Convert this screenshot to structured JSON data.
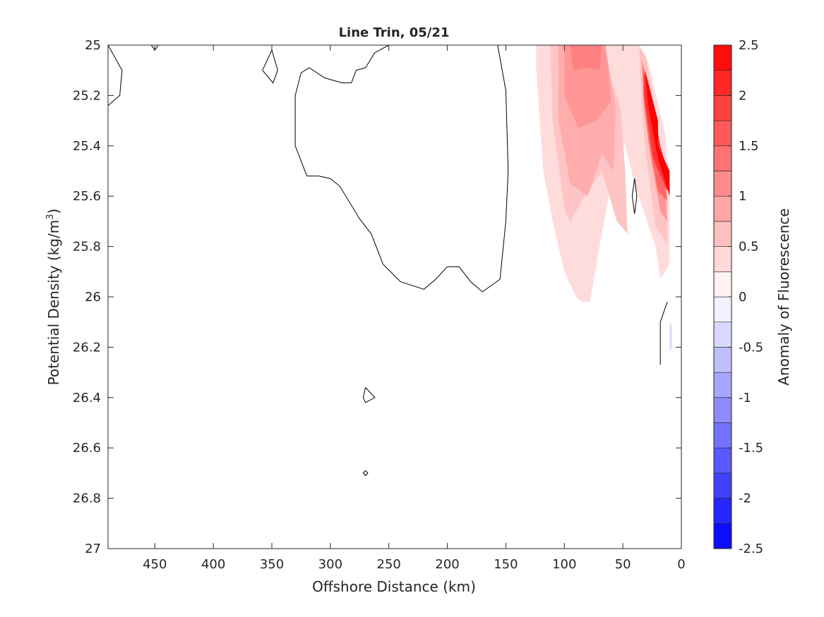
{
  "chart_data": {
    "type": "heatmap",
    "title": "Line Trin, 05/21",
    "xlabel": "Offshore Distance (km)",
    "ylabel_main": "Potential Density (kg/m",
    "ylabel_sup": "3",
    "ylabel_close": ")",
    "colorbar_label": "Anomaly of Fluorescence",
    "xlim": [
      490,
      0
    ],
    "ylim": [
      25,
      27
    ],
    "x_reversed": true,
    "y_reversed": true,
    "x_ticks": [
      450,
      400,
      350,
      300,
      250,
      200,
      150,
      100,
      50,
      0
    ],
    "x_tick_labels": [
      "450",
      "400",
      "350",
      "300",
      "250",
      "200",
      "150",
      "100",
      "50",
      "0"
    ],
    "y_ticks": [
      25,
      25.2,
      25.4,
      25.6,
      25.8,
      26,
      26.2,
      26.4,
      26.6,
      26.8,
      27
    ],
    "y_tick_labels": [
      "25",
      "25.2",
      "25.4",
      "25.6",
      "25.8",
      "26",
      "26.2",
      "26.4",
      "26.6",
      "26.8",
      "27"
    ],
    "colorbar": {
      "range": [
        -2.5,
        2.5
      ],
      "levels": [
        -2.5,
        -2.25,
        -2,
        -1.75,
        -1.5,
        -1.25,
        -1,
        -0.75,
        -0.5,
        -0.25,
        0,
        0.25,
        0.5,
        0.75,
        1,
        1.25,
        1.5,
        1.75,
        2,
        2.25,
        2.5
      ],
      "ticks": [
        2.5,
        2,
        1.5,
        1,
        0.5,
        0,
        -0.5,
        -1,
        -1.5,
        -2,
        -2.5
      ],
      "tick_labels": [
        "2.5",
        "2",
        "1.5",
        "1",
        "0.5",
        "0",
        "-0.5",
        "-1",
        "-1.5",
        "-2",
        "-2.5"
      ]
    },
    "filled_regions": [
      {
        "level": 0.25,
        "color": "#ffdcdc",
        "points": [
          [
            124,
            25
          ],
          [
            37,
            25
          ],
          [
            28,
            25.07
          ],
          [
            14,
            25.35
          ],
          [
            10,
            25.55
          ],
          [
            10,
            25.87
          ],
          [
            18,
            25.93
          ],
          [
            22,
            25.8
          ],
          [
            40,
            25.55
          ],
          [
            48,
            25.4
          ],
          [
            60,
            25.35
          ],
          [
            62,
            25.6
          ],
          [
            70,
            25.8
          ],
          [
            78,
            26.02
          ],
          [
            85,
            26.02
          ],
          [
            90,
            26
          ],
          [
            100,
            25.9
          ],
          [
            110,
            25.7
          ],
          [
            118,
            25.5
          ],
          [
            121,
            25.3
          ],
          [
            124,
            25.1
          ]
        ]
      },
      {
        "level": 0.5,
        "color": "#ffc4c4",
        "points": [
          [
            112,
            25
          ],
          [
            90,
            25
          ],
          [
            70,
            25
          ],
          [
            52,
            25.25
          ],
          [
            48,
            25.5
          ],
          [
            46,
            25.75
          ],
          [
            55,
            25.7
          ],
          [
            68,
            25.5
          ],
          [
            85,
            25.62
          ],
          [
            95,
            25.7
          ],
          [
            100,
            25.65
          ],
          [
            110,
            25.3
          ]
        ]
      },
      {
        "level": 0.75,
        "color": "#ffacac",
        "points": [
          [
            105,
            25
          ],
          [
            65,
            25
          ],
          [
            56,
            25.25
          ],
          [
            58,
            25.5
          ],
          [
            68,
            25.43
          ],
          [
            80,
            25.6
          ],
          [
            95,
            25.55
          ],
          [
            105,
            25.3
          ]
        ]
      },
      {
        "level": 1.0,
        "color": "#ff9696",
        "points": [
          [
            100,
            25
          ],
          [
            65,
            25
          ],
          [
            60,
            25.22
          ],
          [
            72,
            25.3
          ],
          [
            88,
            25.33
          ],
          [
            100,
            25.2
          ]
        ]
      },
      {
        "level": 1.25,
        "color": "#ff8080",
        "points": [
          [
            95,
            25
          ],
          [
            68,
            25
          ],
          [
            70,
            25.1
          ],
          [
            82,
            25.09
          ],
          [
            92,
            25.1
          ]
        ]
      },
      {
        "level": 0.5,
        "color": "#ffc4c4",
        "points": [
          [
            36,
            25
          ],
          [
            30,
            25.05
          ],
          [
            18,
            25.4
          ],
          [
            12,
            25.6
          ],
          [
            12,
            25.79
          ],
          [
            22,
            25.72
          ],
          [
            30,
            25.45
          ],
          [
            34,
            25.25
          ]
        ]
      },
      {
        "level": 1.0,
        "color": "#ff9696",
        "points": [
          [
            34,
            25.05
          ],
          [
            24,
            25.25
          ],
          [
            14,
            25.55
          ],
          [
            12,
            25.7
          ],
          [
            18,
            25.66
          ],
          [
            26,
            25.45
          ],
          [
            32,
            25.25
          ]
        ]
      },
      {
        "level": 1.5,
        "color": "#ff6666",
        "points": [
          [
            33,
            25.08
          ],
          [
            25,
            25.25
          ],
          [
            15,
            25.5
          ],
          [
            12,
            25.62
          ],
          [
            20,
            25.58
          ],
          [
            28,
            25.38
          ],
          [
            32,
            25.22
          ]
        ]
      },
      {
        "level": 2.0,
        "color": "#ff3333",
        "points": [
          [
            32,
            25.1
          ],
          [
            26,
            25.2
          ],
          [
            18,
            25.4
          ],
          [
            12,
            25.5
          ],
          [
            12,
            25.58
          ],
          [
            24,
            25.45
          ],
          [
            32,
            25.2
          ]
        ]
      },
      {
        "level": 2.5,
        "color": "#ff0000",
        "points": [
          [
            31,
            25.1
          ],
          [
            20,
            25.3
          ],
          [
            20,
            25.4
          ],
          [
            10,
            25.5
          ],
          [
            10,
            25.6
          ],
          [
            20,
            25.45
          ],
          [
            28,
            25.25
          ]
        ]
      },
      {
        "level": -0.25,
        "color": "#dcdcff",
        "points": [
          [
            10,
            26.1
          ],
          [
            10,
            26.22
          ],
          [
            8,
            26.2
          ],
          [
            8,
            26.12
          ]
        ]
      }
    ],
    "zero_contours": [
      [
        [
          490,
          25
        ],
        [
          478,
          25.1
        ],
        [
          480,
          25.2
        ],
        [
          490,
          25.24
        ]
      ],
      [
        [
          453,
          25
        ],
        [
          450,
          25.02
        ],
        [
          447,
          25
        ]
      ],
      [
        [
          358,
          25.1
        ],
        [
          350,
          25.02
        ],
        [
          345,
          25.1
        ],
        [
          349,
          25.15
        ],
        [
          358,
          25.1
        ]
      ],
      [
        [
          157,
          25
        ],
        [
          150,
          25.18
        ],
        [
          148,
          25.5
        ],
        [
          150,
          25.7
        ],
        [
          155,
          25.93
        ],
        [
          170,
          25.98
        ],
        [
          180,
          25.94
        ],
        [
          190,
          25.88
        ],
        [
          200,
          25.88
        ],
        [
          210,
          25.93
        ],
        [
          220,
          25.97
        ],
        [
          240,
          25.94
        ],
        [
          255,
          25.87
        ],
        [
          265,
          25.75
        ],
        [
          275,
          25.69
        ],
        [
          292,
          25.56
        ],
        [
          300,
          25.53
        ],
        [
          310,
          25.52
        ],
        [
          320,
          25.52
        ],
        [
          330,
          25.4
        ],
        [
          330,
          25.2
        ],
        [
          325,
          25.11
        ],
        [
          318,
          25.09
        ],
        [
          305,
          25.13
        ],
        [
          290,
          25.15
        ],
        [
          282,
          25.15
        ],
        [
          278,
          25.1
        ],
        [
          270,
          25.09
        ],
        [
          262,
          25.03
        ],
        [
          250,
          25
        ]
      ],
      [
        [
          40,
          25.53
        ],
        [
          38,
          25.6
        ],
        [
          40,
          25.67
        ],
        [
          42,
          25.6
        ],
        [
          40,
          25.53
        ]
      ],
      [
        [
          12,
          26.02
        ],
        [
          18,
          26.1
        ],
        [
          18,
          26.27
        ]
      ],
      [
        [
          270,
          26.36
        ],
        [
          262,
          26.4
        ],
        [
          270,
          26.42
        ],
        [
          272,
          26.4
        ],
        [
          270,
          26.36
        ]
      ],
      [
        [
          270,
          26.69
        ],
        [
          268,
          26.7
        ],
        [
          270,
          26.71
        ],
        [
          272,
          26.7
        ],
        [
          270,
          26.69
        ]
      ]
    ]
  }
}
